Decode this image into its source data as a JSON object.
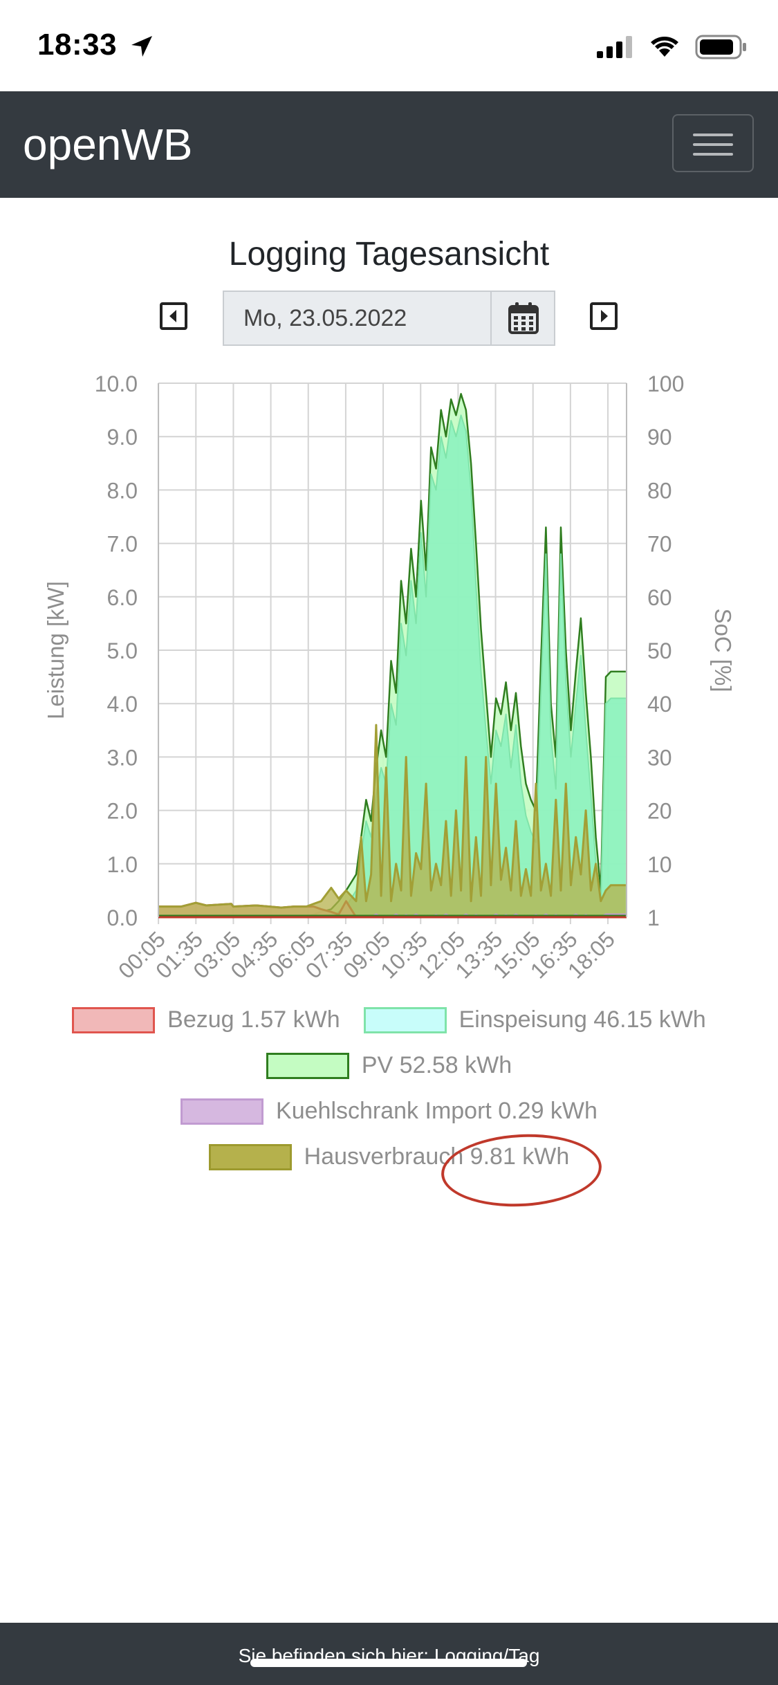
{
  "status_bar": {
    "time": "18:33"
  },
  "navbar": {
    "brand": "openWB"
  },
  "page": {
    "title": "Logging Tagesansicht"
  },
  "date_picker": {
    "value": "Mo, 23.05.2022"
  },
  "footer": {
    "text": "Sie befinden sich hier: Logging/Tag"
  },
  "legend": [
    {
      "label": "Bezug 1.57 kWh",
      "fill": "#f1b8b8",
      "stroke": "#e0554e"
    },
    {
      "label": "Einspeisung 46.15 kWh",
      "fill": "#c8fdfa",
      "stroke": "#7fe3a9"
    },
    {
      "label": "PV 52.58 kWh",
      "fill": "#c4fcc2",
      "stroke": "#2f7d1f"
    },
    {
      "label": "Kuehlschrank Import 0.29 kWh",
      "fill": "#d6b8e0",
      "stroke": "#c19bd1"
    },
    {
      "label": "Hausverbrauch 9.81 kWh",
      "fill": "#b5b14c",
      "stroke": "#9d9a2e"
    }
  ],
  "chart_data": {
    "type": "area",
    "ylabel": "Leistung [kW]",
    "y2label": "SoC [%]",
    "ylim": [
      0,
      10
    ],
    "y2lim": [
      1,
      100
    ],
    "yticks": [
      "0.0",
      "1.0",
      "2.0",
      "3.0",
      "4.0",
      "5.0",
      "6.0",
      "7.0",
      "8.0",
      "9.0",
      "10.0"
    ],
    "y2ticks": [
      "1",
      "10",
      "20",
      "30",
      "40",
      "50",
      "60",
      "70",
      "80",
      "90",
      "100"
    ],
    "xticks": [
      "00:05",
      "01:35",
      "03:05",
      "04:35",
      "06:05",
      "07:35",
      "09:05",
      "10:35",
      "12:05",
      "13:35",
      "15:05",
      "16:35",
      "18:05"
    ],
    "grid": true,
    "legend_position": "bottom",
    "x_hours": [
      0.08,
      1.0,
      1.58,
      2.0,
      3.0,
      3.08,
      4.0,
      5.0,
      5.5,
      6.0,
      6.3,
      6.6,
      7.0,
      7.3,
      7.6,
      8.0,
      8.2,
      8.4,
      8.6,
      8.8,
      9.0,
      9.2,
      9.4,
      9.6,
      9.8,
      10.0,
      10.2,
      10.4,
      10.6,
      10.8,
      11.0,
      11.2,
      11.4,
      11.6,
      11.8,
      12.0,
      12.2,
      12.4,
      12.6,
      12.8,
      13.0,
      13.2,
      13.4,
      13.6,
      13.8,
      14.0,
      14.2,
      14.4,
      14.6,
      14.8,
      15.0,
      15.2,
      15.4,
      15.6,
      15.8,
      16.0,
      16.2,
      16.4,
      16.6,
      16.8,
      17.0,
      17.2,
      17.4,
      17.6,
      17.8,
      18.0,
      18.2,
      18.4,
      18.6,
      18.8,
      18.42
    ],
    "series": [
      {
        "name": "PV 52.58 kWh",
        "values": [
          0,
          0,
          0,
          0,
          0,
          0,
          0,
          0,
          0,
          0,
          0.05,
          0.1,
          0.15,
          0.3,
          0.5,
          0.8,
          1.5,
          2.2,
          1.8,
          2.8,
          3.5,
          3.0,
          4.8,
          4.2,
          6.3,
          5.5,
          6.9,
          6.0,
          7.8,
          6.5,
          8.8,
          8.4,
          9.5,
          9.0,
          9.7,
          9.4,
          9.8,
          9.5,
          8.5,
          7.0,
          5.4,
          4.2,
          3.0,
          4.1,
          3.8,
          4.4,
          3.5,
          4.2,
          3.2,
          2.5,
          2.2,
          2.0,
          4.8,
          7.3,
          4.0,
          3.0,
          7.3,
          5.0,
          3.5,
          4.6,
          5.6,
          4.2,
          3.0,
          1.5,
          0.5,
          4.5,
          4.6,
          4.6,
          4.6,
          4.6,
          4.6
        ]
      },
      {
        "name": "Einspeisung 46.15 kWh",
        "values": [
          0,
          0,
          0,
          0,
          0,
          0,
          0,
          0,
          0,
          0,
          0,
          0,
          0,
          0.1,
          0.2,
          0.5,
          1.2,
          1.8,
          1.5,
          2.3,
          2.8,
          2.5,
          4.0,
          3.6,
          5.5,
          4.9,
          6.3,
          5.5,
          7.2,
          6.0,
          8.3,
          8.0,
          9.0,
          8.6,
          9.3,
          9.0,
          9.4,
          9.1,
          8.0,
          6.2,
          4.6,
          3.5,
          2.5,
          3.5,
          3.2,
          3.8,
          2.8,
          3.6,
          2.5,
          1.9,
          1.6,
          1.4,
          4.2,
          6.8,
          3.4,
          2.4,
          6.8,
          4.4,
          3.0,
          4.0,
          4.9,
          3.5,
          2.3,
          1.0,
          0.3,
          4.0,
          4.1,
          4.1,
          4.1,
          4.1,
          4.1
        ]
      },
      {
        "name": "Bezug 1.57 kWh",
        "values": [
          0.2,
          0.2,
          0.27,
          0.22,
          0.25,
          0.2,
          0.22,
          0.18,
          0.2,
          0.2,
          0.2,
          0.15,
          0.1,
          0.05,
          0.3,
          0,
          0,
          0,
          0,
          0,
          0,
          0,
          0,
          0,
          0,
          0,
          0,
          0,
          0,
          0,
          0,
          0,
          0,
          0,
          0,
          0,
          0,
          0,
          0,
          0,
          0,
          0,
          0,
          0,
          0,
          0,
          0,
          0,
          0,
          0,
          0,
          0,
          0,
          0,
          0,
          0,
          0,
          0,
          0,
          0,
          0,
          0,
          0,
          0,
          0,
          0,
          0,
          0,
          0,
          0,
          0
        ]
      },
      {
        "name": "Hausverbrauch 9.81 kWh",
        "values": [
          0.2,
          0.2,
          0.27,
          0.22,
          0.25,
          0.2,
          0.22,
          0.18,
          0.2,
          0.2,
          0.25,
          0.3,
          0.55,
          0.35,
          0.5,
          0.3,
          1.5,
          0.3,
          0.8,
          3.6,
          0.4,
          2.8,
          0.3,
          1.0,
          0.5,
          3.0,
          0.4,
          1.2,
          0.9,
          2.5,
          0.5,
          1.0,
          0.6,
          1.8,
          0.4,
          2.0,
          0.5,
          3.0,
          0.3,
          1.5,
          0.4,
          3.0,
          0.6,
          2.5,
          0.7,
          1.3,
          0.5,
          1.8,
          0.4,
          0.9,
          0.4,
          2.5,
          0.5,
          1.0,
          0.4,
          2.2,
          0.5,
          2.5,
          0.6,
          1.5,
          0.8,
          2.0,
          0.5,
          1.0,
          0.3,
          0.5,
          0.6,
          0.6,
          0.6,
          0.6,
          0.6
        ]
      },
      {
        "name": "Kuehlschrank Import 0.29 kWh",
        "values": [
          0,
          0,
          0,
          0,
          0,
          0,
          0,
          0,
          0,
          0,
          0,
          0,
          0,
          0,
          0,
          0,
          0,
          0,
          0,
          0.05,
          0,
          0.03,
          0,
          0.05,
          0,
          0.04,
          0,
          0.05,
          0,
          0.03,
          0,
          0.04,
          0,
          0.05,
          0,
          0.03,
          0,
          0.05,
          0,
          0.04,
          0,
          0.03,
          0,
          0.05,
          0,
          0.04,
          0,
          0.05,
          0,
          0.03,
          0,
          0.04,
          0,
          0.05,
          0,
          0.04,
          0,
          0.03,
          0,
          0.05,
          0,
          0.04,
          0,
          0.03,
          0,
          0.05,
          0.05,
          0.05,
          0.05,
          0.05,
          0.05
        ]
      }
    ]
  }
}
